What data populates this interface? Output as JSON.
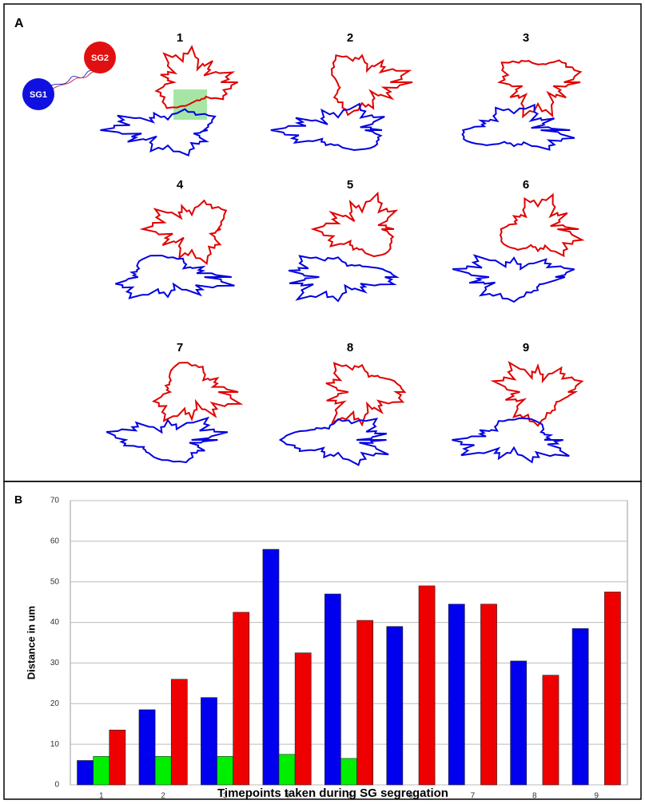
{
  "panel_a": {
    "label": "A",
    "nodes": [
      "SG1",
      "SG2"
    ],
    "frames": [
      "1",
      "2",
      "3",
      "4",
      "5",
      "6",
      "7",
      "8",
      "9"
    ]
  },
  "chart_data": {
    "type": "bar",
    "panel_label": "B",
    "x_label": "Timepoints taken during SG segregation",
    "y_label": "Distance in um",
    "categories": [
      "1",
      "2",
      "3",
      "4",
      "5",
      "6",
      "7",
      "8",
      "9"
    ],
    "series": [
      {
        "color": "#0000ee",
        "values": [
          6,
          18.5,
          21.5,
          58,
          47,
          39,
          44.5,
          30.5,
          38.5
        ]
      },
      {
        "color": "#00ee00",
        "values": [
          7,
          7,
          7,
          7.5,
          6.5,
          null,
          null,
          null,
          null
        ]
      },
      {
        "color": "#ee0000",
        "values": [
          13.5,
          26,
          42.5,
          32.5,
          40.5,
          49,
          44.5,
          27,
          47.5
        ]
      }
    ],
    "ylim": [
      0,
      70
    ],
    "yticks": [
      0,
      10,
      20,
      30,
      40,
      50,
      60,
      70
    ],
    "grid": true
  }
}
